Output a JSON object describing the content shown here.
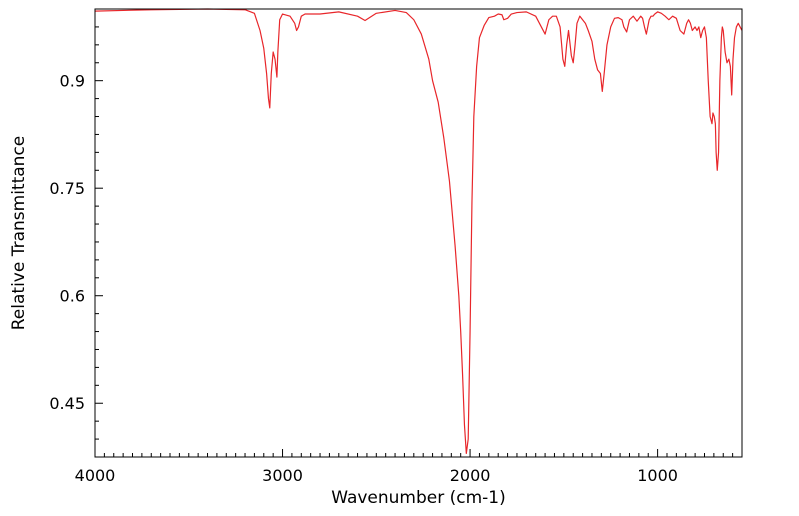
{
  "chart_data": {
    "type": "line",
    "title": "",
    "xlabel": "Wavenumber (cm-1)",
    "ylabel": "Relative Transmittance",
    "xlim": [
      4000,
      550
    ],
    "ylim": [
      0.375,
      1.0
    ],
    "x_reversed": true,
    "x_ticks": [
      4000,
      3000,
      2000,
      1000
    ],
    "x_tick_labels": [
      "4000",
      "3000",
      "2000",
      "1000"
    ],
    "y_ticks": [
      0.45,
      0.6,
      0.75,
      0.9
    ],
    "y_tick_labels": [
      "0.45",
      "0.6",
      "0.75",
      "0.9"
    ],
    "grid": false,
    "legend": "none",
    "series": [
      {
        "color": "#e8262a",
        "x": [
          4000,
          3700,
          3400,
          3200,
          3150,
          3120,
          3100,
          3085,
          3075,
          3068,
          3060,
          3050,
          3040,
          3030,
          3025,
          3015,
          3000,
          2960,
          2935,
          2925,
          2915,
          2900,
          2880,
          2850,
          2800,
          2700,
          2600,
          2560,
          2500,
          2400,
          2340,
          2300,
          2260,
          2220,
          2200,
          2170,
          2140,
          2110,
          2080,
          2060,
          2050,
          2040,
          2030,
          2020,
          2010,
          2000,
          1990,
          1980,
          1965,
          1950,
          1925,
          1900,
          1870,
          1850,
          1830,
          1820,
          1800,
          1780,
          1750,
          1700,
          1650,
          1620,
          1600,
          1580,
          1560,
          1540,
          1520,
          1505,
          1495,
          1485,
          1475,
          1460,
          1450,
          1440,
          1430,
          1415,
          1400,
          1385,
          1370,
          1350,
          1335,
          1320,
          1305,
          1295,
          1285,
          1270,
          1250,
          1230,
          1210,
          1190,
          1180,
          1165,
          1150,
          1130,
          1110,
          1090,
          1080,
          1070,
          1060,
          1045,
          1035,
          1025,
          1015,
          1000,
          980,
          960,
          940,
          920,
          900,
          880,
          860,
          845,
          835,
          825,
          815,
          800,
          790,
          780,
          770,
          760,
          750,
          740,
          730,
          720,
          710,
          705,
          698,
          692,
          688,
          682,
          675,
          668,
          660,
          655,
          650,
          640,
          630,
          620,
          612,
          605,
          598,
          590,
          580,
          570,
          560,
          550
        ],
        "y": [
          0.997,
          0.999,
          1.0,
          0.999,
          0.994,
          0.97,
          0.945,
          0.91,
          0.875,
          0.862,
          0.91,
          0.94,
          0.93,
          0.905,
          0.94,
          0.985,
          0.993,
          0.99,
          0.98,
          0.97,
          0.975,
          0.99,
          0.993,
          0.993,
          0.993,
          0.996,
          0.99,
          0.984,
          0.994,
          0.998,
          0.995,
          0.985,
          0.965,
          0.93,
          0.9,
          0.87,
          0.82,
          0.76,
          0.67,
          0.6,
          0.55,
          0.49,
          0.42,
          0.38,
          0.4,
          0.55,
          0.73,
          0.85,
          0.92,
          0.96,
          0.977,
          0.988,
          0.99,
          0.993,
          0.992,
          0.985,
          0.987,
          0.993,
          0.995,
          0.996,
          0.99,
          0.975,
          0.965,
          0.985,
          0.99,
          0.99,
          0.975,
          0.93,
          0.92,
          0.95,
          0.97,
          0.935,
          0.925,
          0.95,
          0.98,
          0.99,
          0.985,
          0.98,
          0.97,
          0.955,
          0.93,
          0.915,
          0.91,
          0.885,
          0.91,
          0.95,
          0.975,
          0.987,
          0.988,
          0.985,
          0.975,
          0.968,
          0.985,
          0.99,
          0.983,
          0.99,
          0.987,
          0.975,
          0.965,
          0.985,
          0.99,
          0.99,
          0.993,
          0.996,
          0.994,
          0.99,
          0.985,
          0.99,
          0.987,
          0.97,
          0.965,
          0.98,
          0.985,
          0.98,
          0.97,
          0.975,
          0.97,
          0.975,
          0.96,
          0.97,
          0.975,
          0.96,
          0.9,
          0.85,
          0.84,
          0.855,
          0.85,
          0.84,
          0.8,
          0.775,
          0.8,
          0.9,
          0.96,
          0.975,
          0.97,
          0.94,
          0.925,
          0.93,
          0.92,
          0.88,
          0.93,
          0.96,
          0.975,
          0.98,
          0.975,
          0.97
        ]
      }
    ]
  }
}
